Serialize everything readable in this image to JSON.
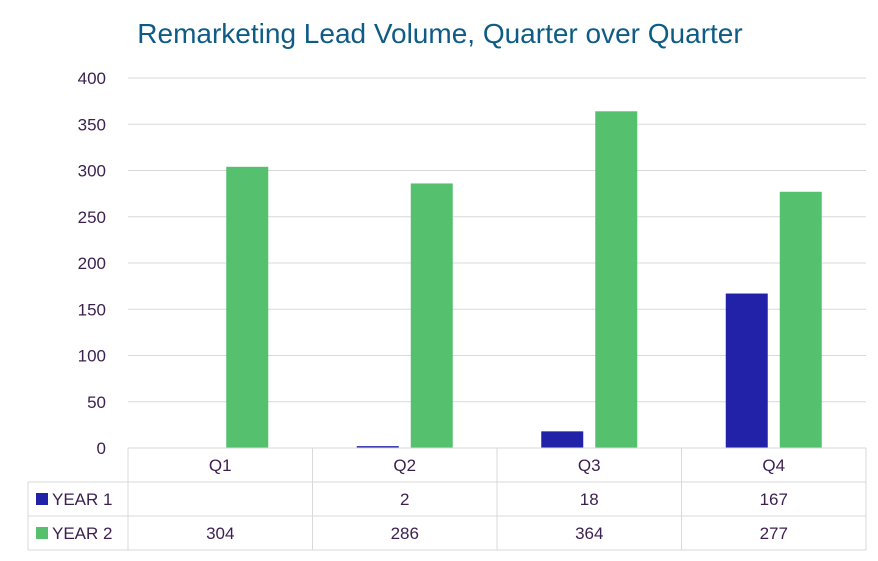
{
  "chart_data": {
    "type": "bar",
    "title": "Remarketing Lead Volume, Quarter over Quarter",
    "categories": [
      "Q1",
      "Q2",
      "Q3",
      "Q4"
    ],
    "ylim": [
      0,
      400
    ],
    "yticks": [
      "0",
      "50",
      "100",
      "150",
      "200",
      "250",
      "300",
      "350",
      "400"
    ],
    "grid": true,
    "legend": "data-table",
    "series": [
      {
        "name": "YEAR 1",
        "color": "#2222a8",
        "values": [
          null,
          2,
          18,
          167
        ],
        "labels": [
          "",
          "2",
          "18",
          "167"
        ]
      },
      {
        "name": "YEAR 2",
        "color": "#55c06e",
        "values": [
          304,
          286,
          364,
          277
        ],
        "labels": [
          "304",
          "286",
          "364",
          "277"
        ]
      }
    ]
  }
}
